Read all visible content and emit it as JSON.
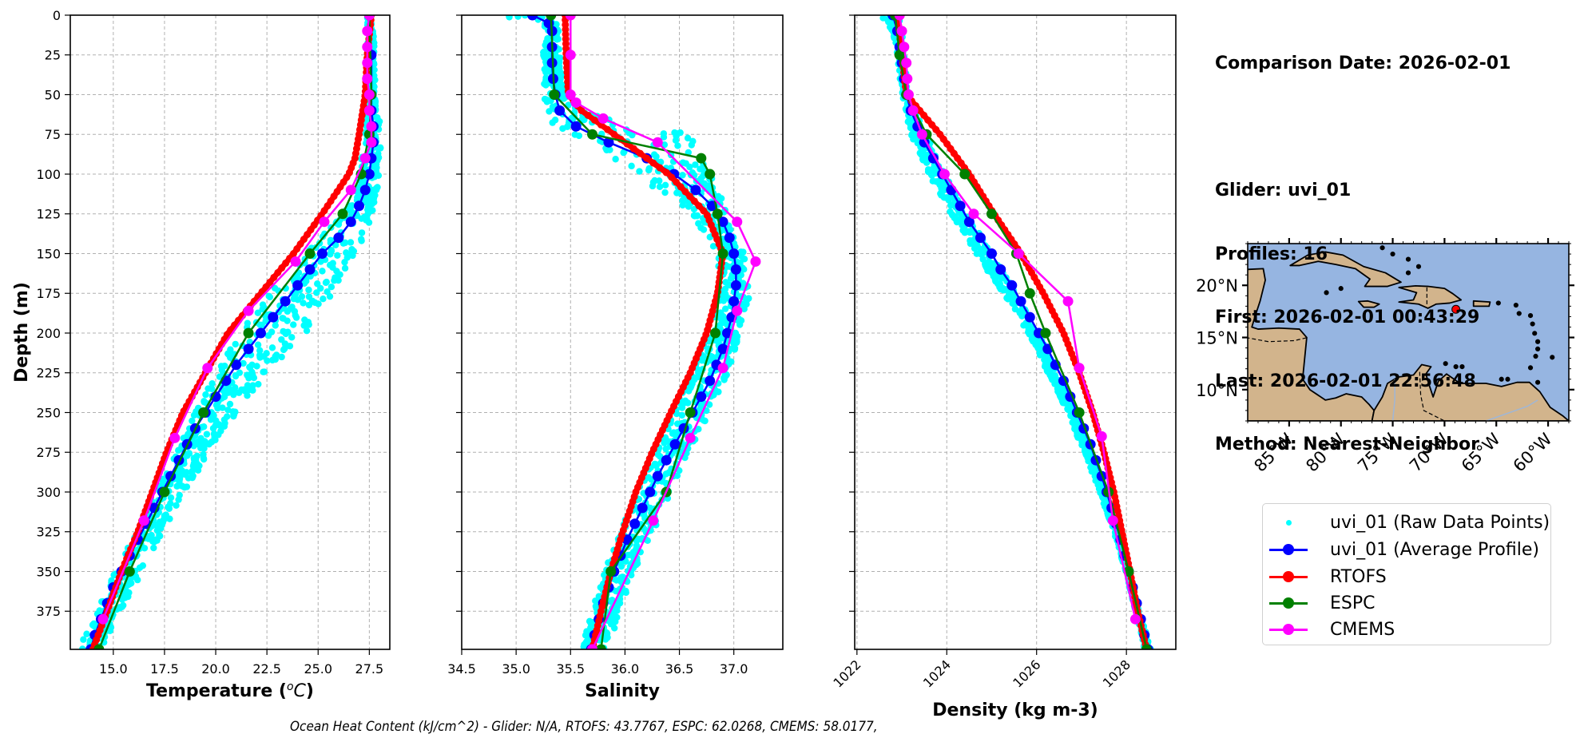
{
  "info": {
    "comparison_date": "Comparison Date: 2026-02-01",
    "glider": "Glider: uvi_01",
    "profiles": "Profiles: 16",
    "first": "First: 2026-02-01 00:43:29",
    "last": "Last: 2026-02-01 22:56:48",
    "method": "Method: Nearest-Neighbor"
  },
  "footer": {
    "ohc_text": "Ocean Heat Content (kJ/cm^2) - Glider: N/A,  RTOFS: 43.7767,  ESPC: 62.0268,  CMEMS: 58.0177,"
  },
  "colors": {
    "raw": "#00ffff",
    "glider": "#0000ff",
    "rtofs": "#ff0000",
    "espc": "#008000",
    "cmems": "#ff00ff",
    "ocean": "#96b5e1",
    "land": "#d2b48c",
    "grid": "#b0b0b0"
  },
  "legend": {
    "items": [
      {
        "label": "uvi_01 (Raw Data Points)",
        "key": "raw",
        "style": "point"
      },
      {
        "label": "uvi_01 (Average Profile)",
        "key": "glider",
        "style": "line-marker"
      },
      {
        "label": "RTOFS",
        "key": "rtofs",
        "style": "line-marker"
      },
      {
        "label": "ESPC",
        "key": "espc",
        "style": "line-marker"
      },
      {
        "label": "CMEMS",
        "key": "cmems",
        "style": "line-marker"
      }
    ],
    "placement": "right"
  },
  "chart_data": [
    {
      "type": "line",
      "id": "temperature",
      "title": "",
      "xlabel": "Temperature (°C)",
      "ylabel": "Depth (m)",
      "xlim": [
        12.9,
        28.5
      ],
      "ylim": [
        399,
        0
      ],
      "xticks": [
        15.0,
        17.5,
        20.0,
        22.5,
        25.0,
        27.5
      ],
      "xtick_labels": [
        "15.0",
        "17.5",
        "20.0",
        "22.5",
        "25.0",
        "27.5"
      ],
      "yticks": [
        0,
        25,
        50,
        75,
        100,
        125,
        150,
        175,
        200,
        225,
        250,
        275,
        300,
        325,
        350,
        375
      ],
      "ytick_labels": [
        "0",
        "25",
        "50",
        "75",
        "100",
        "125",
        "150",
        "175",
        "200",
        "225",
        "250",
        "275",
        "300",
        "325",
        "350",
        "375"
      ],
      "grid": true,
      "series": [
        {
          "name": "uvi_01 (Average Profile)",
          "key": "glider",
          "depth": [
            0,
            25,
            50,
            60,
            70,
            80,
            90,
            100,
            110,
            120,
            130,
            140,
            150,
            160,
            170,
            180,
            190,
            200,
            210,
            220,
            230,
            240,
            250,
            260,
            270,
            280,
            290,
            300,
            310,
            320,
            330,
            340,
            350,
            360,
            370,
            380,
            390,
            399
          ],
          "values": [
            27.5,
            27.6,
            27.6,
            27.6,
            27.7,
            27.7,
            27.6,
            27.5,
            27.3,
            27.0,
            26.6,
            26.0,
            25.2,
            24.6,
            24.0,
            23.4,
            22.8,
            22.2,
            21.6,
            21.0,
            20.5,
            20.0,
            19.5,
            19.0,
            18.6,
            18.2,
            17.8,
            17.4,
            17.0,
            16.6,
            16.2,
            15.8,
            15.4,
            15.0,
            14.7,
            14.4,
            14.1,
            13.9
          ]
        },
        {
          "name": "RTOFS",
          "key": "rtofs",
          "depth": [
            0,
            25,
            50,
            75,
            90,
            100,
            125,
            150,
            175,
            200,
            225,
            250,
            275,
            300,
            325,
            350,
            375,
            399
          ],
          "values": [
            27.6,
            27.4,
            27.3,
            27.0,
            26.8,
            26.5,
            25.2,
            23.8,
            22.2,
            20.6,
            19.5,
            18.4,
            17.6,
            16.9,
            16.2,
            15.4,
            14.7,
            14.0
          ]
        },
        {
          "name": "ESPC",
          "key": "espc",
          "depth": [
            0,
            50,
            75,
            100,
            125,
            150,
            200,
            250,
            300,
            350,
            399
          ],
          "values": [
            27.5,
            27.6,
            27.5,
            27.1,
            26.2,
            24.6,
            21.6,
            19.4,
            17.5,
            15.8,
            14.3
          ]
        },
        {
          "name": "CMEMS",
          "key": "cmems",
          "depth": [
            0,
            10,
            20,
            30,
            40,
            50,
            60,
            70,
            80,
            90,
            110,
            130,
            155,
            186,
            222,
            266,
            318,
            380
          ],
          "values": [
            27.5,
            27.4,
            27.4,
            27.4,
            27.4,
            27.5,
            27.5,
            27.6,
            27.6,
            27.3,
            26.6,
            25.3,
            23.9,
            21.6,
            19.6,
            18.0,
            16.5,
            14.5
          ]
        }
      ],
      "raw_band": {
        "depth": [
          0,
          50,
          75,
          100,
          125,
          150,
          175,
          200,
          225,
          250,
          275,
          300,
          325,
          350,
          375,
          399
        ],
        "min": [
          27.4,
          27.4,
          27.3,
          27.0,
          26.3,
          24.3,
          22.6,
          21.2,
          20.0,
          19.0,
          18.1,
          17.1,
          16.1,
          15.1,
          14.2,
          13.3
        ],
        "max": [
          27.7,
          27.8,
          28.1,
          28.0,
          27.7,
          26.9,
          25.8,
          24.4,
          22.6,
          21.0,
          19.7,
          18.5,
          17.4,
          16.4,
          15.4,
          14.4
        ]
      }
    },
    {
      "type": "line",
      "id": "salinity",
      "title": "",
      "xlabel": "Salinity",
      "ylabel": "",
      "xlim": [
        34.5,
        37.45
      ],
      "ylim": [
        399,
        0
      ],
      "xticks": [
        34.5,
        35.0,
        35.5,
        36.0,
        36.5,
        37.0
      ],
      "xtick_labels": [
        "34.5",
        "35.0",
        "35.5",
        "36.0",
        "36.5",
        "37.0"
      ],
      "yticks": [
        0,
        25,
        50,
        75,
        100,
        125,
        150,
        175,
        200,
        225,
        250,
        275,
        300,
        325,
        350,
        375
      ],
      "grid": true,
      "series": [
        {
          "name": "uvi_01 (Average Profile)",
          "key": "glider",
          "depth": [
            0,
            5,
            10,
            20,
            30,
            40,
            50,
            60,
            70,
            80,
            90,
            100,
            110,
            120,
            130,
            140,
            150,
            160,
            170,
            180,
            190,
            200,
            210,
            220,
            230,
            240,
            250,
            260,
            270,
            280,
            290,
            300,
            310,
            320,
            330,
            340,
            350,
            360,
            370,
            380,
            390,
            399
          ],
          "values": [
            35.15,
            35.3,
            35.33,
            35.33,
            35.33,
            35.34,
            35.36,
            35.4,
            35.55,
            35.85,
            36.2,
            36.45,
            36.65,
            36.8,
            36.9,
            36.96,
            37.0,
            37.02,
            37.02,
            37.0,
            36.98,
            36.94,
            36.9,
            36.84,
            36.78,
            36.7,
            36.62,
            36.54,
            36.46,
            36.38,
            36.3,
            36.23,
            36.16,
            36.09,
            36.02,
            35.96,
            35.9,
            35.85,
            35.8,
            35.76,
            35.72,
            35.69
          ]
        },
        {
          "name": "RTOFS",
          "key": "rtofs",
          "depth": [
            0,
            25,
            50,
            60,
            75,
            100,
            125,
            150,
            175,
            200,
            225,
            250,
            275,
            300,
            325,
            350,
            375,
            399
          ],
          "values": [
            35.45,
            35.46,
            35.48,
            35.6,
            35.9,
            36.4,
            36.75,
            36.9,
            36.85,
            36.75,
            36.6,
            36.42,
            36.25,
            36.1,
            35.98,
            35.87,
            35.78,
            35.7
          ]
        },
        {
          "name": "ESPC",
          "key": "espc",
          "depth": [
            0,
            50,
            75,
            90,
            100,
            125,
            150,
            200,
            250,
            300,
            350,
            399
          ],
          "values": [
            35.32,
            35.35,
            35.7,
            36.7,
            36.78,
            36.85,
            36.9,
            36.83,
            36.6,
            36.38,
            35.87,
            35.78
          ]
        },
        {
          "name": "CMEMS",
          "key": "cmems",
          "depth": [
            0,
            25,
            50,
            55,
            65,
            80,
            130,
            155,
            186,
            222,
            266,
            318,
            399
          ],
          "values": [
            35.5,
            35.5,
            35.5,
            35.55,
            35.8,
            36.3,
            37.03,
            37.2,
            37.03,
            36.9,
            36.6,
            36.26,
            35.7
          ]
        }
      ],
      "raw_band": {
        "depth": [
          0,
          5,
          20,
          50,
          65,
          75,
          100,
          125,
          150,
          175,
          200,
          225,
          250,
          275,
          300,
          325,
          350,
          375,
          399
        ],
        "min": [
          34.8,
          35.25,
          35.25,
          35.25,
          35.25,
          35.4,
          36.1,
          36.6,
          36.85,
          36.85,
          36.75,
          36.6,
          36.45,
          36.28,
          36.1,
          35.95,
          35.8,
          35.7,
          35.6
        ],
        "max": [
          35.4,
          35.4,
          35.4,
          35.45,
          35.8,
          36.6,
          36.8,
          36.95,
          37.1,
          37.15,
          37.05,
          36.95,
          36.78,
          36.58,
          36.42,
          36.26,
          36.08,
          35.95,
          35.85
        ]
      }
    },
    {
      "type": "line",
      "id": "density",
      "title": "",
      "xlabel": "Density (kg m-3)",
      "ylabel": "",
      "xlim": [
        1021.95,
        1029.1
      ],
      "ylim": [
        399,
        0
      ],
      "xticks": [
        1022,
        1024,
        1026,
        1028
      ],
      "xtick_labels": [
        "1022",
        "1024",
        "1026",
        "1028"
      ],
      "yticks": [
        0,
        25,
        50,
        75,
        100,
        125,
        150,
        175,
        200,
        225,
        250,
        275,
        300,
        325,
        350,
        375
      ],
      "grid": true,
      "series": [
        {
          "name": "uvi_01 (Average Profile)",
          "key": "glider",
          "depth": [
            0,
            10,
            20,
            30,
            40,
            50,
            60,
            70,
            80,
            90,
            100,
            110,
            120,
            130,
            140,
            150,
            160,
            170,
            180,
            190,
            200,
            210,
            220,
            230,
            240,
            250,
            260,
            270,
            280,
            290,
            300,
            310,
            320,
            330,
            340,
            350,
            360,
            370,
            380,
            390,
            399
          ],
          "values": [
            1022.8,
            1022.9,
            1022.95,
            1023.0,
            1023.05,
            1023.1,
            1023.2,
            1023.35,
            1023.5,
            1023.7,
            1023.9,
            1024.1,
            1024.3,
            1024.5,
            1024.75,
            1025.0,
            1025.2,
            1025.45,
            1025.65,
            1025.85,
            1026.05,
            1026.25,
            1026.42,
            1026.6,
            1026.75,
            1026.9,
            1027.05,
            1027.2,
            1027.32,
            1027.45,
            1027.56,
            1027.67,
            1027.77,
            1027.87,
            1027.96,
            1028.05,
            1028.14,
            1028.23,
            1028.32,
            1028.4,
            1028.48
          ]
        },
        {
          "name": "RTOFS",
          "key": "rtofs",
          "depth": [
            0,
            25,
            50,
            60,
            75,
            100,
            125,
            150,
            175,
            200,
            225,
            250,
            275,
            300,
            325,
            350,
            375,
            399
          ],
          "values": [
            1022.9,
            1023.0,
            1023.1,
            1023.4,
            1023.85,
            1024.5,
            1025.05,
            1025.65,
            1026.15,
            1026.6,
            1026.95,
            1027.25,
            1027.5,
            1027.72,
            1027.9,
            1028.08,
            1028.25,
            1028.45
          ]
        },
        {
          "name": "ESPC",
          "key": "espc",
          "depth": [
            0,
            25,
            50,
            75,
            100,
            125,
            150,
            175,
            200,
            250,
            300,
            350,
            399
          ],
          "values": [
            1022.85,
            1022.95,
            1023.1,
            1023.55,
            1024.4,
            1025.0,
            1025.55,
            1025.85,
            1026.2,
            1026.95,
            1027.6,
            1028.05,
            1028.45
          ]
        },
        {
          "name": "CMEMS",
          "key": "cmems",
          "depth": [
            0,
            10,
            20,
            30,
            40,
            50,
            60,
            75,
            100,
            125,
            150,
            180,
            222,
            265,
            318,
            380
          ],
          "values": [
            1022.95,
            1023.0,
            1023.05,
            1023.1,
            1023.12,
            1023.15,
            1023.25,
            1023.45,
            1023.95,
            1024.6,
            1025.6,
            1026.7,
            1026.95,
            1027.45,
            1027.7,
            1028.2
          ]
        }
      ],
      "raw_band": {
        "depth": [
          0,
          10,
          25,
          50,
          75,
          100,
          125,
          150,
          175,
          200,
          225,
          250,
          275,
          300,
          325,
          350,
          375,
          399
        ],
        "min": [
          1022.5,
          1022.8,
          1022.9,
          1023.0,
          1023.2,
          1023.6,
          1024.1,
          1024.65,
          1025.25,
          1025.8,
          1026.25,
          1026.7,
          1027.05,
          1027.4,
          1027.72,
          1027.98,
          1028.2,
          1028.4
        ],
        "max": [
          1022.95,
          1023.0,
          1023.05,
          1023.15,
          1023.55,
          1023.95,
          1024.45,
          1025.0,
          1025.55,
          1026.05,
          1026.45,
          1026.85,
          1027.2,
          1027.55,
          1027.82,
          1028.08,
          1028.3,
          1028.55
        ]
      }
    },
    {
      "type": "scatter",
      "id": "location-map",
      "title": "",
      "xlim": [
        -89,
        -58
      ],
      "ylim": [
        7,
        24
      ],
      "xticks": [
        -85,
        -80,
        -75,
        -70,
        -65,
        -60
      ],
      "xtick_labels": [
        "85°W",
        "80°W",
        "75°W",
        "70°W",
        "65°W",
        "60°W"
      ],
      "yticks": [
        10,
        15,
        20
      ],
      "ytick_labels": [
        "10°N",
        "15°N",
        "20°N"
      ],
      "points": [
        {
          "lon": -68.9,
          "lat": 17.7,
          "label": "glider location"
        }
      ]
    }
  ]
}
